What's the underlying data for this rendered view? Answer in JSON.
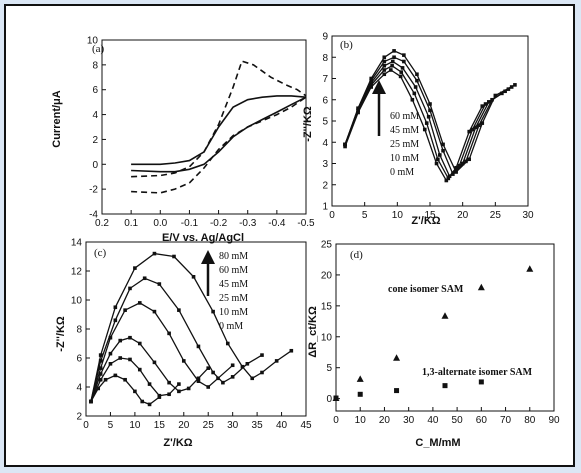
{
  "chart_data": [
    {
      "panel": "(a)",
      "type": "line",
      "title": "",
      "xlabel": "E/V vs. Ag/AgCl",
      "ylabel": "Current/μA",
      "xlim": [
        0.2,
        -0.5
      ],
      "ylim": [
        -4,
        10
      ],
      "xticks": [
        "0.2",
        "0.1",
        "0.0",
        "-0.1",
        "-0.2",
        "-0.3",
        "-0.4",
        "-0.5"
      ],
      "yticks": [
        "-4",
        "-2",
        "0",
        "2",
        "4",
        "6",
        "8",
        "10"
      ],
      "series": [
        {
          "style": "dashed",
          "upper": {
            "x": [
              0.1,
              0.0,
              -0.05,
              -0.1,
              -0.15,
              -0.2,
              -0.25,
              -0.28,
              -0.32,
              -0.38,
              -0.43,
              -0.47,
              -0.5
            ],
            "y": [
              -1.0,
              -0.9,
              -0.7,
              -0.2,
              1.0,
              3.2,
              6.2,
              8.3,
              8.0,
              7.0,
              6.4,
              6.0,
              5.5
            ]
          },
          "lower": {
            "x": [
              0.1,
              0.0,
              -0.05,
              -0.1,
              -0.15,
              -0.2,
              -0.25,
              -0.3,
              -0.35,
              -0.4,
              -0.45,
              -0.5
            ],
            "y": [
              -2.2,
              -2.3,
              -2.0,
              -1.5,
              -0.3,
              1.2,
              2.3,
              3.0,
              3.5,
              4.0,
              4.6,
              5.4
            ]
          }
        },
        {
          "style": "solid",
          "upper": {
            "x": [
              0.1,
              0.0,
              -0.05,
              -0.1,
              -0.15,
              -0.2,
              -0.25,
              -0.3,
              -0.35,
              -0.4,
              -0.45,
              -0.5
            ],
            "y": [
              0.0,
              0.0,
              0.1,
              0.3,
              1.0,
              3.0,
              4.6,
              5.2,
              5.4,
              5.5,
              5.5,
              5.4
            ]
          },
          "lower": {
            "x": [
              0.1,
              0.0,
              -0.05,
              -0.1,
              -0.15,
              -0.2,
              -0.25,
              -0.3,
              -0.35,
              -0.4,
              -0.45,
              -0.5
            ],
            "y": [
              -0.5,
              -0.6,
              -0.6,
              -0.4,
              0.0,
              1.0,
              2.2,
              3.0,
              3.6,
              4.2,
              4.8,
              5.4
            ]
          }
        }
      ]
    },
    {
      "panel": "(b)",
      "type": "scatter",
      "title": "",
      "xlabel": "Z'/KΩ",
      "ylabel": "-Z''/KΩ",
      "xlim": [
        0,
        30
      ],
      "ylim": [
        1,
        9
      ],
      "xticks": [
        "0",
        "5",
        "10",
        "15",
        "20",
        "25",
        "30"
      ],
      "yticks": [
        "1",
        "2",
        "3",
        "4",
        "5",
        "6",
        "7",
        "8",
        "9"
      ],
      "legend": [
        "60 mM",
        "45 mM",
        "25 mM",
        "10 mM",
        "0 mM"
      ],
      "series": [
        {
          "name": "60 mM",
          "x": [
            2,
            4,
            6,
            8,
            9.5,
            11,
            13,
            15,
            17,
            19,
            21,
            23,
            25,
            28
          ],
          "y": [
            3.9,
            5.6,
            7.0,
            8.0,
            8.3,
            8.1,
            7.2,
            5.8,
            3.9,
            2.6,
            3.2,
            4.9,
            6.2,
            6.7
          ]
        },
        {
          "name": "45 mM",
          "x": [
            2,
            4,
            6,
            8,
            9.5,
            11,
            13,
            15,
            17,
            18.5,
            20.5,
            22.5,
            24.5,
            27.5
          ],
          "y": [
            3.9,
            5.6,
            6.9,
            7.8,
            8.0,
            7.8,
            6.9,
            5.5,
            3.6,
            2.5,
            3.1,
            4.8,
            6.0,
            6.6
          ]
        },
        {
          "name": "25 mM",
          "x": [
            2,
            4,
            6,
            8,
            9.3,
            10.8,
            12.8,
            14.8,
            16.5,
            18,
            20,
            22,
            24,
            27
          ],
          "y": [
            3.9,
            5.5,
            6.8,
            7.6,
            7.8,
            7.5,
            6.6,
            5.2,
            3.4,
            2.4,
            3.0,
            4.7,
            5.9,
            6.5
          ]
        },
        {
          "name": "10 mM",
          "x": [
            2,
            4,
            6,
            8,
            9.2,
            10.6,
            12.6,
            14.5,
            16.2,
            17.8,
            19.5,
            21.5,
            23.5,
            26.5
          ],
          "y": [
            3.9,
            5.5,
            6.7,
            7.4,
            7.6,
            7.3,
            6.3,
            4.9,
            3.2,
            2.3,
            2.9,
            4.6,
            5.8,
            6.4
          ]
        },
        {
          "name": "0 mM",
          "x": [
            2,
            4,
            6,
            8,
            9,
            10.5,
            12.3,
            14.2,
            16,
            17.5,
            19,
            21,
            23,
            26
          ],
          "y": [
            3.8,
            5.4,
            6.6,
            7.2,
            7.4,
            7.1,
            6.0,
            4.6,
            3.0,
            2.2,
            2.8,
            4.5,
            5.7,
            6.3
          ]
        }
      ]
    },
    {
      "panel": "(c)",
      "type": "scatter",
      "title": "",
      "xlabel": "Z'/KΩ",
      "ylabel": "-Z''/KΩ",
      "xlim": [
        0,
        45
      ],
      "ylim": [
        2,
        14
      ],
      "xticks": [
        "0",
        "5",
        "10",
        "15",
        "20",
        "25",
        "30",
        "35",
        "40",
        "45"
      ],
      "yticks": [
        "2",
        "4",
        "6",
        "8",
        "10",
        "12",
        "14"
      ],
      "legend": [
        "80 mM",
        "60 mM",
        "45 mM",
        "25 mM",
        "10 mM",
        "0 mM"
      ],
      "series": [
        {
          "name": "80 mM",
          "x": [
            1,
            3,
            6,
            10,
            14,
            18,
            22,
            26,
            29,
            32,
            34,
            36,
            39,
            42
          ],
          "y": [
            3.0,
            6.2,
            9.5,
            12.2,
            13.2,
            13.0,
            11.6,
            9.2,
            7.0,
            5.4,
            4.6,
            5.0,
            5.8,
            6.5
          ]
        },
        {
          "name": "60 mM",
          "x": [
            1,
            3,
            6,
            9,
            12,
            15,
            19,
            23,
            26,
            28,
            30,
            33,
            36
          ],
          "y": [
            3.0,
            5.8,
            8.6,
            10.8,
            11.5,
            11.1,
            9.3,
            6.8,
            5.0,
            4.3,
            4.7,
            5.6,
            6.2
          ]
        },
        {
          "name": "45 mM",
          "x": [
            1,
            3,
            5,
            8,
            11,
            14,
            17,
            20,
            23,
            25,
            27,
            30
          ],
          "y": [
            3.0,
            5.3,
            7.4,
            9.3,
            9.8,
            9.2,
            7.7,
            5.8,
            4.4,
            4.0,
            4.6,
            5.5
          ]
        },
        {
          "name": "25 mM",
          "x": [
            1,
            3,
            5,
            7,
            9,
            11,
            14,
            17,
            19,
            21,
            23,
            25
          ],
          "y": [
            3.0,
            4.9,
            6.3,
            7.2,
            7.4,
            7.0,
            5.7,
            4.3,
            3.7,
            3.9,
            4.6,
            5.3
          ]
        },
        {
          "name": "10 mM",
          "x": [
            1,
            3,
            5,
            7,
            9,
            11,
            13,
            15,
            17,
            19
          ],
          "y": [
            3.0,
            4.5,
            5.6,
            6.0,
            5.9,
            5.2,
            4.2,
            3.4,
            3.5,
            4.2
          ]
        },
        {
          "name": "0 mM",
          "x": [
            1,
            2.5,
            4,
            6,
            8,
            10,
            11.5,
            13,
            15
          ],
          "y": [
            3.0,
            3.9,
            4.5,
            4.8,
            4.5,
            3.7,
            3.0,
            2.8,
            3.3
          ]
        }
      ]
    },
    {
      "panel": "(d)",
      "type": "scatter",
      "title": "",
      "xlabel": "C_M/mM",
      "ylabel": "ΔR_ct/KΩ",
      "xlim": [
        0,
        90
      ],
      "ylim": [
        -2,
        25
      ],
      "xticks": [
        "0",
        "10",
        "20",
        "30",
        "40",
        "50",
        "60",
        "70",
        "80",
        "90"
      ],
      "yticks": [
        "0",
        "5",
        "10",
        "15",
        "20",
        "25"
      ],
      "annotations": [
        "cone isomer SAM",
        "1,3-alternate isomer SAM"
      ],
      "series": [
        {
          "name": "cone isomer SAM",
          "marker": "triangle",
          "x": [
            0,
            10,
            25,
            45,
            60,
            80
          ],
          "y": [
            0.1,
            3.2,
            6.6,
            13.4,
            18.0,
            21.0
          ]
        },
        {
          "name": "1,3-alternate isomer SAM",
          "marker": "square",
          "x": [
            0,
            10,
            25,
            45,
            60
          ],
          "y": [
            0.1,
            0.7,
            1.3,
            2.1,
            2.7
          ]
        }
      ]
    }
  ]
}
